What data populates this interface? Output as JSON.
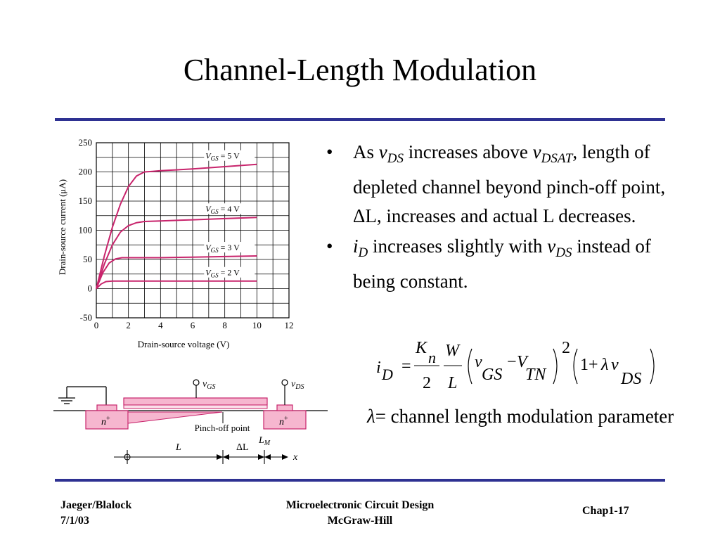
{
  "slide": {
    "title": "Channel-Length Modulation",
    "accent_color": "#2e3192",
    "curve_color": "#c8246c"
  },
  "bullets": [
    {
      "prefix": "As ",
      "v1": "v",
      "v1_sub": "DS",
      "mid": " increases above ",
      "v2": "v",
      "v2_sub": "DSAT",
      "rest": ", length of depleted channel beyond pinch-off point, ΔL, increases and actual L decreases."
    },
    {
      "v1": "i",
      "v1_sub": "D",
      "mid": " increases slightly with ",
      "v2": "v",
      "v2_sub": "DS",
      "rest": " instead of being constant."
    }
  ],
  "equation": {
    "lhs": "i",
    "lhs_sub": "D",
    "eq": "=",
    "k": "K",
    "k_sub": "n",
    "two": "2",
    "w": "W",
    "l": "L",
    "vgs": "v",
    "vgs_sub": "GS",
    "minus": "−",
    "vtn": "V",
    "vtn_sub": "TN",
    "square": "2",
    "one_plus": "1+",
    "lam": "λ",
    "vds": "v",
    "vds_sub": "DS"
  },
  "lambda_def": {
    "symbol": "λ",
    "text": "= channel length modulation parameter"
  },
  "chart_data": {
    "type": "line",
    "title": "",
    "xlabel": "Drain-source voltage (V)",
    "ylabel": "Drain-source current (μA)",
    "xlim": [
      0,
      12
    ],
    "ylim": [
      -50,
      250
    ],
    "x_ticks": [
      0,
      2,
      4,
      6,
      8,
      10,
      12
    ],
    "y_ticks": [
      -50,
      0,
      50,
      100,
      150,
      200,
      250
    ],
    "grid": true,
    "series": [
      {
        "name": "V_GS = 5 V",
        "label_v": "V",
        "label_sub": "GS",
        "label_rest": " = 5 V",
        "x": [
          0,
          0.5,
          1,
          1.5,
          2,
          2.5,
          3,
          3.5,
          4,
          6,
          8,
          10
        ],
        "y": [
          0,
          56,
          105,
          145,
          175,
          193,
          200,
          201,
          202,
          205,
          209,
          213
        ]
      },
      {
        "name": "V_GS = 4 V",
        "label_v": "V",
        "label_sub": "GS",
        "label_rest": " = 4 V",
        "x": [
          0,
          0.5,
          1,
          1.5,
          2,
          2.5,
          3,
          4,
          6,
          8,
          10
        ],
        "y": [
          0,
          42,
          75,
          97,
          108,
          113,
          115,
          116,
          118,
          120,
          122
        ]
      },
      {
        "name": "V_GS = 3 V",
        "label_v": "V",
        "label_sub": "GS",
        "label_rest": " = 3 V",
        "x": [
          0,
          0.4,
          0.8,
          1.2,
          1.6,
          2,
          4,
          6,
          8,
          10
        ],
        "y": [
          0,
          27,
          44,
          51,
          53,
          53,
          53,
          54,
          55,
          56
        ]
      },
      {
        "name": "V_GS = 2 V",
        "label_v": "V",
        "label_sub": "GS",
        "label_rest": " = 2 V",
        "x": [
          0,
          0.3,
          0.6,
          1,
          2,
          4,
          6,
          8,
          10
        ],
        "y": [
          0,
          8,
          12,
          13,
          13,
          13,
          13,
          13,
          13
        ]
      }
    ]
  },
  "device": {
    "vgs": "v",
    "vgs_sub": "GS",
    "vds": "v",
    "vds_sub": "DS",
    "n_plus": "n",
    "n_plus_sup": "+",
    "pinch_off": "Pinch-off point",
    "L": "L",
    "dL": "ΔL",
    "LM": "L",
    "LM_sub": "M",
    "x": "x"
  },
  "footer": {
    "left_line1": "Jaeger/Blalock",
    "left_line2": "7/1/03",
    "center_line1": "Microelectronic Circuit Design",
    "center_line2": "McGraw-Hill",
    "right": "Chap1-17"
  }
}
